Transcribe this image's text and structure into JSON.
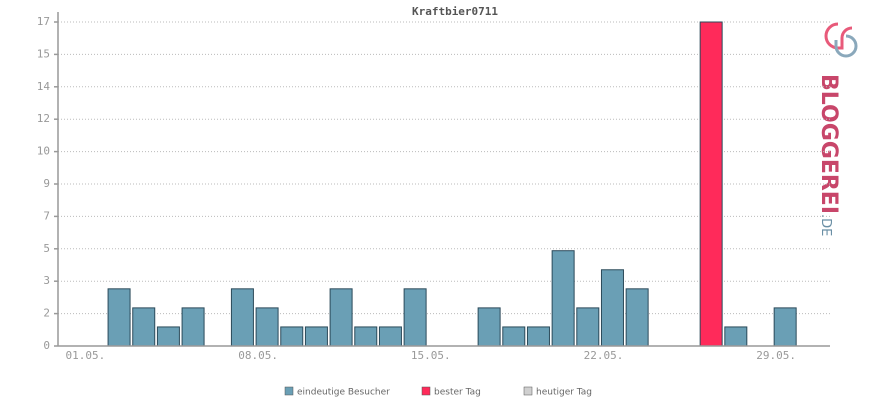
{
  "chart_data": {
    "type": "bar",
    "title": "Kraftbier0711",
    "categories": [
      "01.05.",
      null,
      null,
      null,
      null,
      null,
      null,
      "08.05.",
      null,
      null,
      null,
      null,
      null,
      null,
      "15.05.",
      null,
      null,
      null,
      null,
      null,
      null,
      "22.05.",
      null,
      null,
      null,
      null,
      null,
      null,
      "29.05.",
      null
    ],
    "series": [
      {
        "name": "eindeutige Besucher",
        "color": "#6a9fb5",
        "values": [
          0,
          3,
          2,
          1,
          2,
          0,
          3,
          2,
          1,
          1,
          3,
          1,
          1,
          3,
          0,
          0,
          2,
          1,
          1,
          5,
          2,
          4,
          3,
          0,
          0,
          null,
          1,
          0,
          2,
          0
        ]
      },
      {
        "name": "bester Tag",
        "color": "#ff2a5a",
        "values": [
          null,
          null,
          null,
          null,
          null,
          null,
          null,
          null,
          null,
          null,
          null,
          null,
          null,
          null,
          null,
          null,
          null,
          null,
          null,
          null,
          null,
          null,
          null,
          null,
          null,
          17,
          null,
          null,
          null,
          null
        ]
      },
      {
        "name": "heutiger Tag",
        "color": "#d0d0d0",
        "values": [
          null,
          null,
          null,
          null,
          null,
          null,
          null,
          null,
          null,
          null,
          null,
          null,
          null,
          null,
          null,
          null,
          null,
          null,
          null,
          null,
          null,
          null,
          null,
          null,
          null,
          null,
          null,
          null,
          null,
          null
        ]
      }
    ],
    "ylim": [
      0,
      17
    ],
    "yticks": [
      0,
      {
        "value": 1.7,
        "label": "2"
      },
      {
        "value": 3.4,
        "label": "3"
      },
      {
        "value": 5.1,
        "label": "5"
      },
      {
        "value": 6.8,
        "label": "7"
      },
      {
        "value": 8.5,
        "label": "9"
      },
      {
        "value": 10.2,
        "label": "10"
      },
      {
        "value": 11.9,
        "label": "12"
      },
      {
        "value": 13.6,
        "label": "14"
      },
      {
        "value": 15.3,
        "label": "15"
      },
      17
    ],
    "grid": true
  },
  "logo": {
    "text": "BLOGGEREI",
    "suffix": ".DE"
  }
}
